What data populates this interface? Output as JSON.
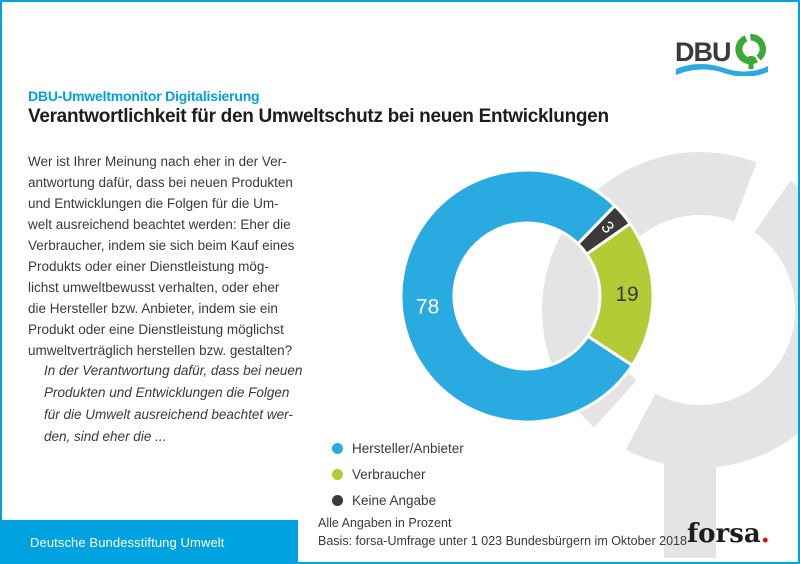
{
  "header": {
    "kicker": "DBU-Umweltmonitor Digitalisierung",
    "title": "Verantwortlichkeit für den Umweltschutz bei neuen Entwicklungen",
    "logo_text": "DBU"
  },
  "question": {
    "main": "Wer ist Ihrer Meinung nach eher in der Ver-\nantwortung dafür, dass bei neuen Produkten\nund Entwicklungen die Folgen für die Um-\nwelt ausreichend beachtet werden: Eher die\nVerbraucher, indem sie sich beim Kauf eines\nProdukts oder einer Dienstleistung mög-\nlichst umweltbewusst verhalten, oder eher\ndie Hersteller bzw. Anbieter, indem sie ein\nProdukt oder eine Dienstleistung möglichst\numweltverträglich herstellen bzw. gestalten?",
    "lead_in": "In der Verantwortung dafür, dass bei neuen\nProdukten und Entwicklungen die Folgen\nfür die Umwelt ausreichend beachtet wer-\nden, sind eher die ..."
  },
  "chart_data": {
    "type": "donut",
    "unit": "Prozent",
    "start_angle_deg": 44.2,
    "segments": [
      {
        "label": "Keine Angabe",
        "value": 3,
        "color": "#3a3a3a",
        "value_label_color": "#ffffff",
        "label_radius": 106,
        "rotate_label": true,
        "value_font_size": 17
      },
      {
        "label": "Verbraucher",
        "value": 19,
        "color": "#b4cb35",
        "value_label_color": "#3a3a3a",
        "label_radius": 100,
        "rotate_label": false,
        "value_font_size": 21
      },
      {
        "label": "Hersteller/Anbieter",
        "value": 78,
        "color": "#29abe2",
        "value_label_color": "#ffffff",
        "label_radius": 100,
        "rotate_label": false,
        "value_font_size": 21
      }
    ],
    "legend_position": "bottom-left-of-chart"
  },
  "legend": {
    "items": [
      {
        "label": "Hersteller/Anbieter",
        "color": "#29abe2"
      },
      {
        "label": "Verbraucher",
        "color": "#b4cb35"
      },
      {
        "label": "Keine Angabe",
        "color": "#3a3a3a"
      }
    ]
  },
  "footnotes": {
    "line1": "Alle Angaben in Prozent",
    "line2": "Basis: forsa-Umfrage unter 1 023 Bundesbürgern im Oktober 2018"
  },
  "footer": {
    "organization": "Deutsche Bundesstiftung Umwelt"
  },
  "branding": {
    "forsa_text": "forsa",
    "forsa_dot": ".",
    "colors": {
      "accent_cyan": "#00a3e0",
      "kicker_cyan": "#009fe3",
      "donut_blue": "#29abe2",
      "donut_green": "#b4cb35",
      "donut_dark": "#3a3a3a",
      "watermark_gray": "#e4e4e4",
      "logo_green": "#3ba935",
      "forsa_red": "#e30613"
    }
  }
}
